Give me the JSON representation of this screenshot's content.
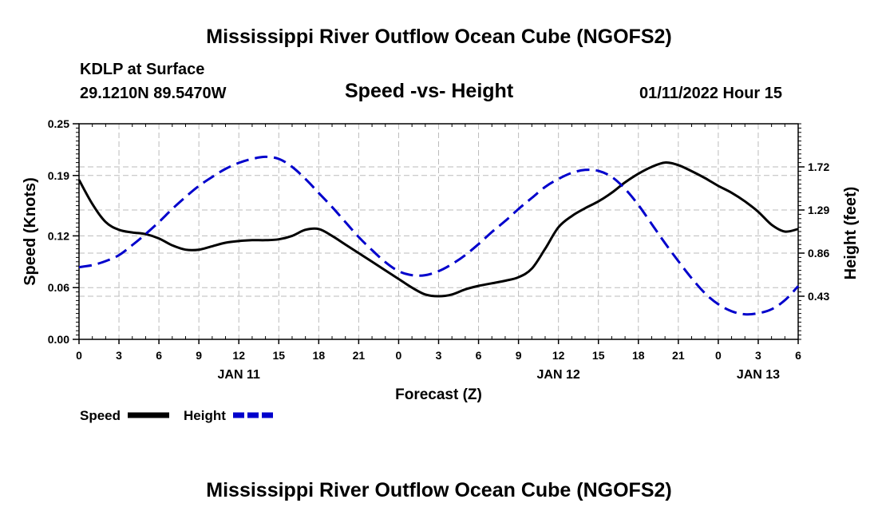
{
  "header": {
    "title": "Mississippi River Outflow Ocean Cube (NGOFS2)",
    "station": "KDLP at Surface",
    "coords": "29.1210N  89.5470W",
    "subtitle": "Speed -vs- Height",
    "datetime": "01/11/2022 Hour 15",
    "footer_title": "Mississippi River Outflow Ocean Cube (NGOFS2)"
  },
  "colors": {
    "speed": "#000000",
    "height": "#0000cc",
    "grid": "#bbbbbb"
  },
  "chart_data": {
    "type": "line",
    "title": "Speed -vs- Height",
    "xlabel": "Forecast (Z)",
    "ylabel": "Speed (Knots)",
    "y2label": "Height (feet)",
    "xlim": [
      0,
      54
    ],
    "ylim": [
      0,
      0.25
    ],
    "y2lim": [
      0,
      2.15
    ],
    "x_tick_positions": [
      0,
      3,
      6,
      9,
      12,
      15,
      18,
      21,
      24,
      27,
      30,
      33,
      36,
      39,
      42,
      45,
      48,
      51,
      54
    ],
    "x_tick_labels": [
      "0",
      "3",
      "6",
      "9",
      "12",
      "15",
      "18",
      "21",
      "0",
      "3",
      "6",
      "9",
      "12",
      "15",
      "18",
      "21",
      "0",
      "3",
      "6"
    ],
    "date_labels": [
      {
        "x": 12,
        "label": "JAN 11"
      },
      {
        "x": 36,
        "label": "JAN 12"
      },
      {
        "x": 51,
        "label": "JAN 13"
      }
    ],
    "y_ticks": [
      0.0,
      0.06,
      0.12,
      0.19,
      0.25
    ],
    "y_tick_labels": [
      "0.00",
      "0.06",
      "0.12",
      "0.19",
      "0.25"
    ],
    "y2_ticks": [
      0.43,
      0.86,
      1.29,
      1.72
    ],
    "y2_tick_labels": [
      "0.43",
      "0.86",
      "1.29",
      "1.72"
    ],
    "grid": true,
    "legend": "bottom-left",
    "series": [
      {
        "name": "Speed",
        "axis": "left",
        "style": "solid",
        "x": [
          0,
          1,
          2,
          3,
          4,
          5,
          6,
          7,
          8,
          9,
          10,
          11,
          12,
          13,
          14,
          15,
          16,
          17,
          18,
          19,
          20,
          21,
          22,
          23,
          24,
          25,
          26,
          27,
          28,
          29,
          30,
          31,
          32,
          33,
          34,
          35,
          36,
          37,
          38,
          39,
          40,
          41,
          42,
          43,
          44,
          45,
          46,
          47,
          48,
          49,
          50,
          51,
          52,
          53,
          54
        ],
        "values": [
          0.185,
          0.157,
          0.136,
          0.127,
          0.124,
          0.122,
          0.117,
          0.109,
          0.104,
          0.104,
          0.108,
          0.112,
          0.114,
          0.115,
          0.115,
          0.116,
          0.12,
          0.127,
          0.128,
          0.12,
          0.11,
          0.1,
          0.09,
          0.08,
          0.07,
          0.06,
          0.052,
          0.05,
          0.052,
          0.058,
          0.062,
          0.065,
          0.068,
          0.072,
          0.082,
          0.105,
          0.13,
          0.143,
          0.152,
          0.16,
          0.17,
          0.182,
          0.192,
          0.2,
          0.205,
          0.202,
          0.195,
          0.187,
          0.178,
          0.17,
          0.16,
          0.148,
          0.133,
          0.125,
          0.128
        ]
      },
      {
        "name": "Height",
        "axis": "right",
        "style": "dashed",
        "x": [
          0,
          1,
          2,
          3,
          4,
          5,
          6,
          7,
          8,
          9,
          10,
          11,
          12,
          13,
          14,
          15,
          16,
          17,
          18,
          19,
          20,
          21,
          22,
          23,
          24,
          25,
          26,
          27,
          28,
          29,
          30,
          31,
          32,
          33,
          34,
          35,
          36,
          37,
          38,
          39,
          40,
          41,
          42,
          43,
          44,
          45,
          46,
          47,
          48,
          49,
          50,
          51,
          52,
          53,
          54
        ],
        "values": [
          0.72,
          0.74,
          0.78,
          0.84,
          0.94,
          1.05,
          1.17,
          1.3,
          1.42,
          1.53,
          1.62,
          1.7,
          1.76,
          1.8,
          1.82,
          1.8,
          1.72,
          1.6,
          1.46,
          1.32,
          1.17,
          1.02,
          0.89,
          0.77,
          0.68,
          0.64,
          0.64,
          0.68,
          0.75,
          0.84,
          0.95,
          1.07,
          1.18,
          1.3,
          1.41,
          1.52,
          1.6,
          1.66,
          1.69,
          1.68,
          1.62,
          1.5,
          1.34,
          1.15,
          0.96,
          0.78,
          0.61,
          0.46,
          0.35,
          0.28,
          0.25,
          0.26,
          0.3,
          0.39,
          0.53
        ]
      }
    ]
  }
}
